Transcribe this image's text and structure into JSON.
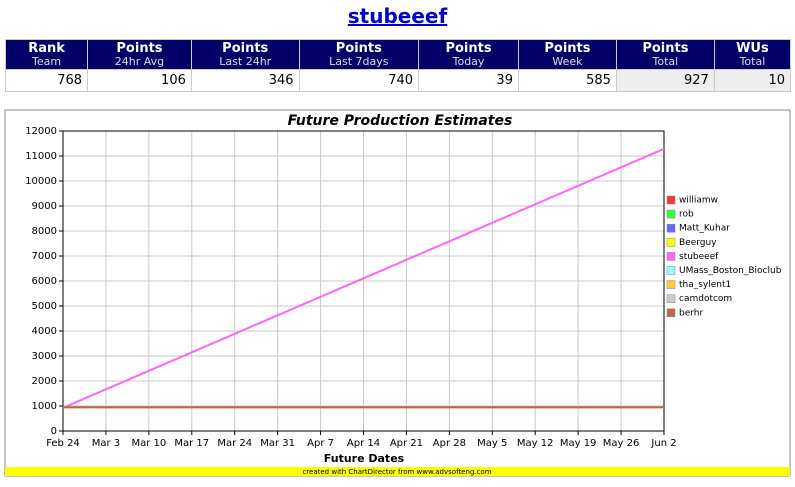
{
  "header": {
    "title": "stubeeef"
  },
  "table": {
    "headers": [
      {
        "title": "Rank",
        "sub": "Team"
      },
      {
        "title": "Points",
        "sub": "24hr Avg"
      },
      {
        "title": "Points",
        "sub": "Last 24hr"
      },
      {
        "title": "Points",
        "sub": "Last 7days"
      },
      {
        "title": "Points",
        "sub": "Today"
      },
      {
        "title": "Points",
        "sub": "Week"
      },
      {
        "title": "Points",
        "sub": "Total"
      },
      {
        "title": "WUs",
        "sub": "Total"
      }
    ],
    "rows": [
      [
        768,
        106,
        346,
        740,
        39,
        585,
        927,
        10
      ]
    ]
  },
  "chart_data": {
    "type": "line",
    "title": "Future Production Estimates",
    "x_label": "Future Dates",
    "credit": "created with ChartDirector from www.advsofteng.com",
    "categories": [
      "Feb 24",
      "Mar 3",
      "Mar 10",
      "Mar 17",
      "Mar 24",
      "Mar 31",
      "Apr 7",
      "Apr 14",
      "Apr 21",
      "Apr 28",
      "May 5",
      "May 12",
      "May 19",
      "May 26",
      "Jun 2"
    ],
    "ylim": [
      0,
      12000
    ],
    "yticks": [
      0,
      1000,
      2000,
      3000,
      4000,
      5000,
      6000,
      7000,
      8000,
      9000,
      10000,
      11000,
      12000
    ],
    "grid": true,
    "legend": "right",
    "series": [
      {
        "name": "williamw",
        "color": "#ff3333",
        "values": [
          950,
          950,
          950,
          950,
          950,
          950,
          950,
          950,
          950,
          950,
          950,
          950,
          950,
          950,
          950
        ]
      },
      {
        "name": "rob",
        "color": "#33ff33",
        "values": [
          950,
          950,
          950,
          950,
          950,
          950,
          950,
          950,
          950,
          950,
          950,
          950,
          950,
          950,
          950
        ]
      },
      {
        "name": "Matt_Kuhar",
        "color": "#6666ff",
        "values": [
          950,
          950,
          950,
          950,
          950,
          950,
          950,
          950,
          950,
          950,
          950,
          950,
          950,
          950,
          950
        ]
      },
      {
        "name": "Beerguy",
        "color": "#ffff00",
        "values": [
          950,
          950,
          950,
          950,
          950,
          950,
          950,
          950,
          950,
          950,
          950,
          950,
          950,
          950,
          950
        ]
      },
      {
        "name": "stubeeef",
        "color": "#ff66ff",
        "values": [
          927,
          1667,
          2407,
          3147,
          3887,
          4627,
          5367,
          6107,
          6847,
          7587,
          8327,
          9067,
          9807,
          10547,
          11287
        ]
      },
      {
        "name": "UMass_Boston_Bioclub",
        "color": "#99ffff",
        "values": [
          950,
          950,
          950,
          950,
          950,
          950,
          950,
          950,
          950,
          950,
          950,
          950,
          950,
          950,
          950
        ]
      },
      {
        "name": "tha_sylent1",
        "color": "#ffcc33",
        "values": [
          950,
          950,
          950,
          950,
          950,
          950,
          950,
          950,
          950,
          950,
          950,
          950,
          950,
          950,
          950
        ]
      },
      {
        "name": "camdotcom",
        "color": "#cccccc",
        "values": [
          950,
          950,
          950,
          950,
          950,
          950,
          950,
          950,
          950,
          950,
          950,
          950,
          950,
          950,
          950
        ]
      },
      {
        "name": "berhr",
        "color": "#bb6644",
        "values": [
          950,
          950,
          950,
          950,
          950,
          950,
          950,
          950,
          950,
          950,
          950,
          950,
          950,
          950,
          950
        ]
      }
    ]
  }
}
